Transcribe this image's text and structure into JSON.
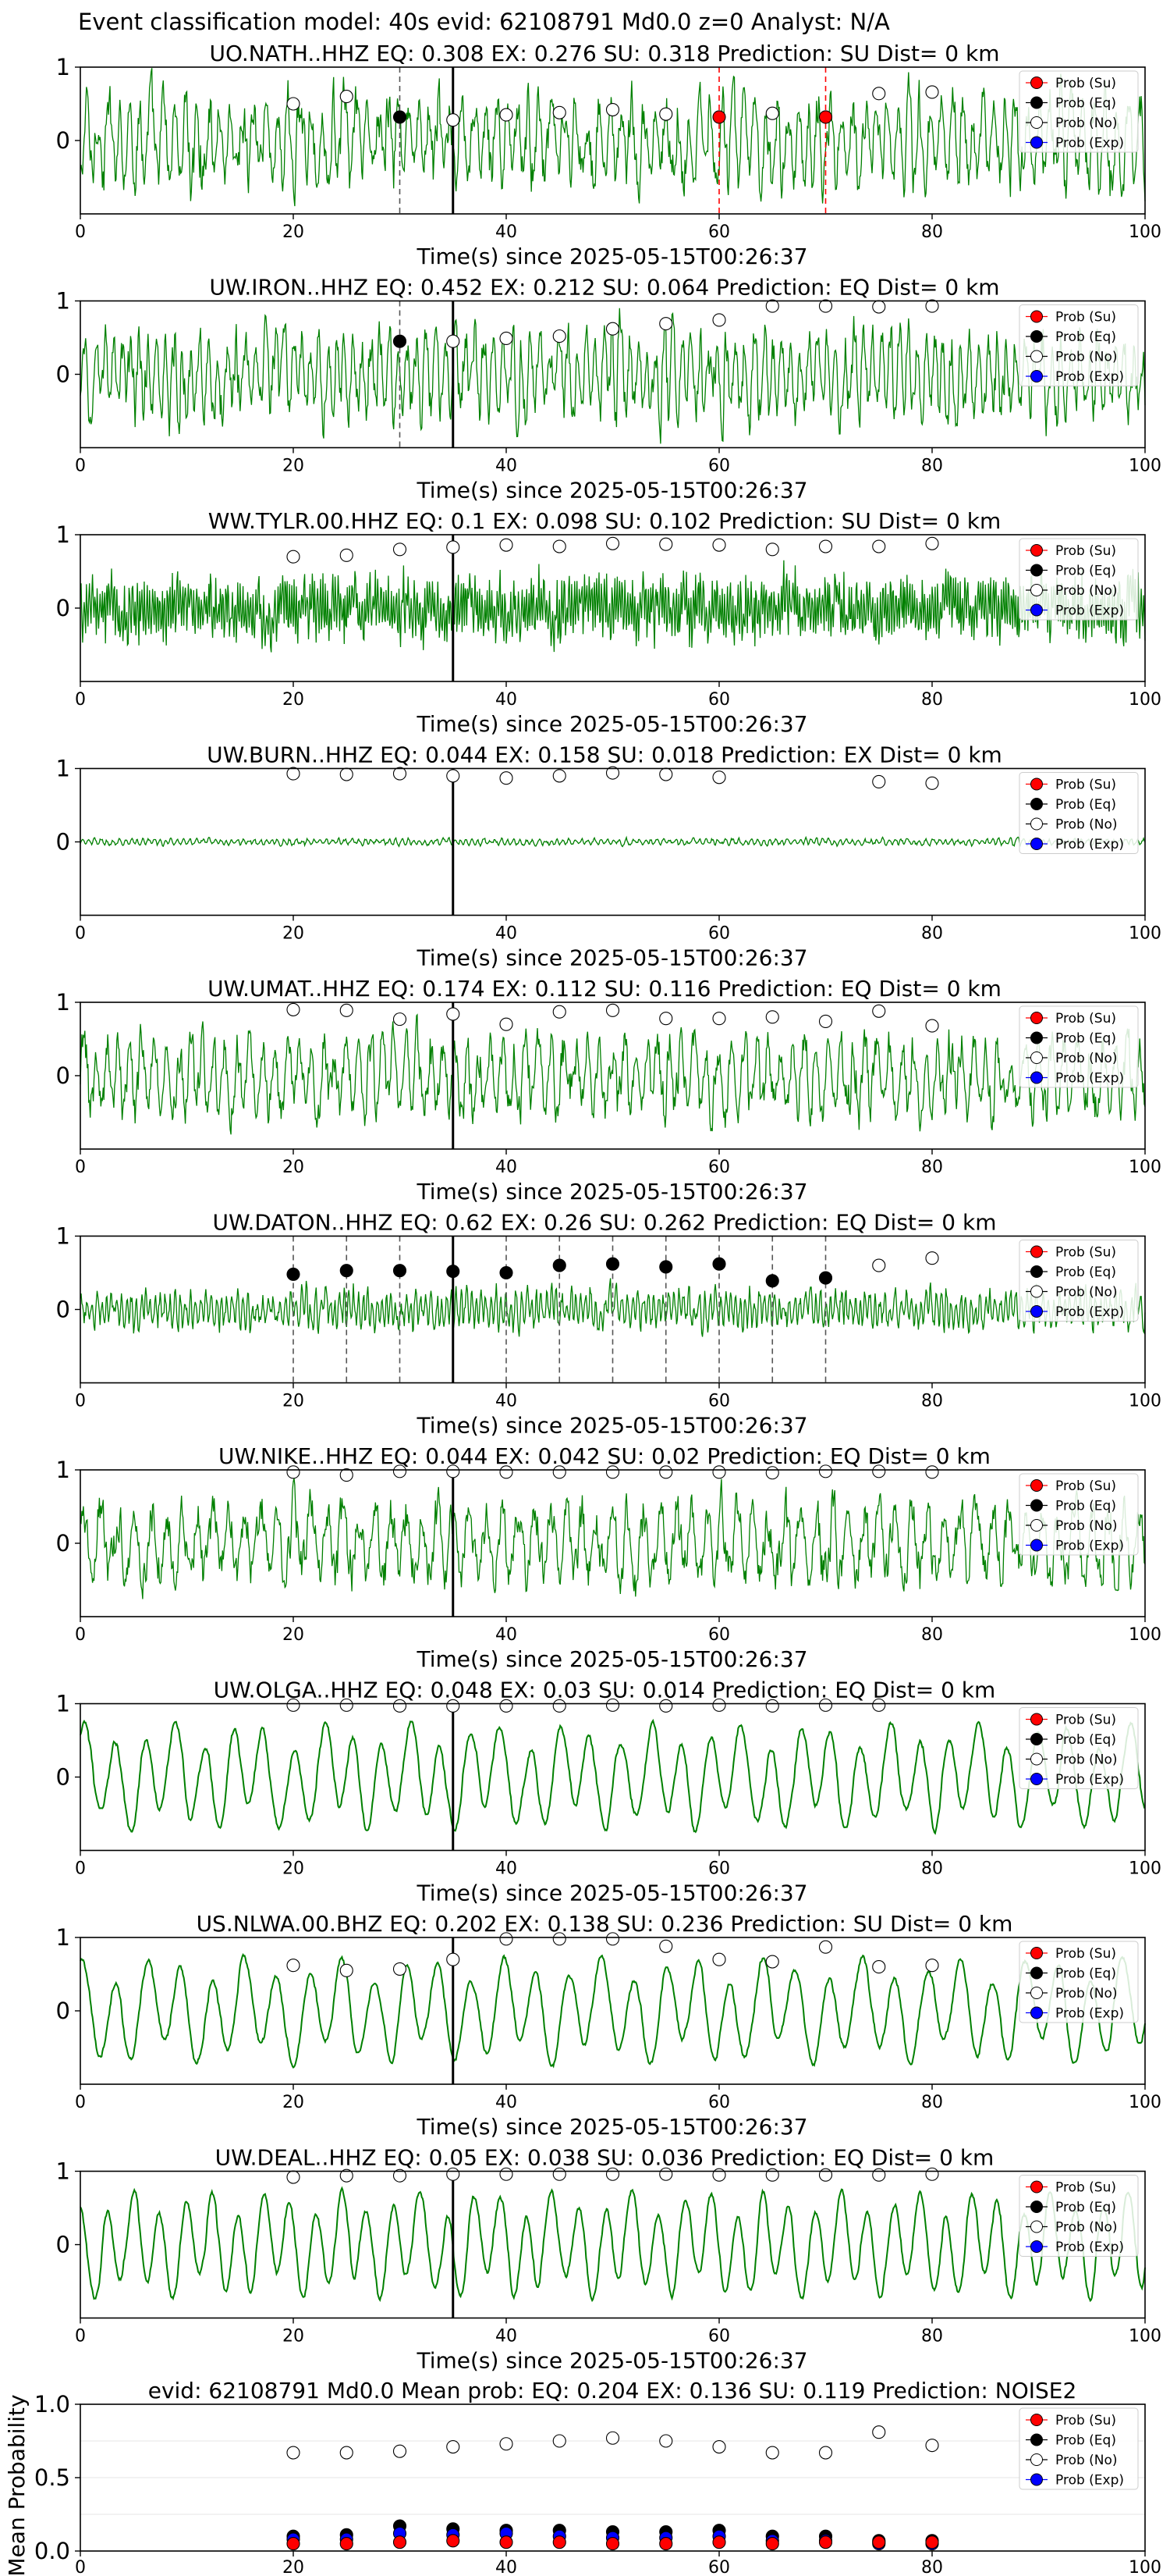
{
  "figure": {
    "title": "Event classification model: 40s evid: 62108791 Md0.0 z=0 Analyst: N/A"
  },
  "legend": {
    "entries": [
      {
        "label": "Prob (Su)",
        "color": "#ff0000",
        "filled": true
      },
      {
        "label": "Prob (Eq)",
        "color": "#000000",
        "filled": true
      },
      {
        "label": "Prob (No)",
        "color": "#ffffff",
        "filled": false
      },
      {
        "label": "Prob (Exp)",
        "color": "#0000ff",
        "filled": true
      }
    ]
  },
  "colors": {
    "trace": "#008000",
    "su": "#ff0000",
    "eq": "#000000",
    "no": "#ffffff",
    "exp": "#0000ff",
    "pick_line": "#000000",
    "eq_window_line": "#555555",
    "su_window_line": "#ff0000"
  },
  "chart_data": [
    {
      "type": "line",
      "station": "UO.NATH..HHZ",
      "title": "UO.NATH..HHZ   EQ: 0.308  EX: 0.276  SU: 0.318   Prediction: SU    Dist= 0 km",
      "xlabel": "Time(s) since 2025-05-15T00:26:37",
      "xlim": [
        0,
        100
      ],
      "ylim": [
        -1,
        1
      ],
      "xticks": [
        "0",
        "20",
        "40",
        "60",
        "80",
        "100"
      ],
      "yticks": [
        "0",
        "1"
      ],
      "pick_time": 35,
      "amplitude": 0.85,
      "period_s": 1.1,
      "grid": false,
      "prob_times": [
        20,
        25,
        30,
        35,
        40,
        45,
        50,
        55,
        60,
        65,
        70,
        75,
        80
      ],
      "predicted_class": [
        "no",
        "no",
        "eq",
        "no",
        "no",
        "no",
        "no",
        "no",
        "su",
        "no",
        "su",
        "no",
        "no"
      ],
      "predicted_prob": [
        0.5,
        0.6,
        0.32,
        0.28,
        0.35,
        0.38,
        0.42,
        0.36,
        0.32,
        0.37,
        0.32,
        0.64,
        0.66
      ]
    },
    {
      "type": "line",
      "station": "UW.IRON..HHZ",
      "title": "UW.IRON..HHZ   EQ: 0.452  EX: 0.212  SU: 0.064   Prediction: EQ    Dist= 0 km",
      "xlabel": "Time(s) since 2025-05-15T00:26:37",
      "xlim": [
        0,
        100
      ],
      "ylim": [
        -1,
        1
      ],
      "xticks": [
        "0",
        "20",
        "40",
        "60",
        "80",
        "100"
      ],
      "yticks": [
        "0",
        "1"
      ],
      "pick_time": 35,
      "amplitude": 0.8,
      "period_s": 0.9,
      "grid": false,
      "prob_times": [
        30,
        35,
        40,
        45,
        50,
        55,
        60,
        65,
        70,
        75,
        80
      ],
      "predicted_class": [
        "eq",
        "no",
        "no",
        "no",
        "no",
        "no",
        "no",
        "no",
        "no",
        "no",
        "no"
      ],
      "predicted_prob": [
        0.45,
        0.45,
        0.49,
        0.52,
        0.62,
        0.69,
        0.74,
        0.93,
        0.93,
        0.92,
        0.93
      ]
    },
    {
      "type": "line",
      "station": "WW.TYLR.00.HHZ",
      "title": "WW.TYLR.00.HHZ   EQ: 0.1  EX: 0.098  SU: 0.102   Prediction: SU    Dist= 0 km",
      "xlabel": "Time(s) since 2025-05-15T00:26:37",
      "xlim": [
        0,
        100
      ],
      "ylim": [
        -1,
        1
      ],
      "xticks": [
        "0",
        "20",
        "40",
        "60",
        "80",
        "100"
      ],
      "yticks": [
        "0",
        "1"
      ],
      "pick_time": 35,
      "amplitude": 0.55,
      "period_s": 0.25,
      "grid": false,
      "prob_times": [
        20,
        25,
        30,
        35,
        40,
        45,
        50,
        55,
        60,
        65,
        70,
        75,
        80
      ],
      "predicted_class": [
        "no",
        "no",
        "no",
        "no",
        "no",
        "no",
        "no",
        "no",
        "no",
        "no",
        "no",
        "no",
        "no"
      ],
      "predicted_prob": [
        0.7,
        0.72,
        0.8,
        0.83,
        0.86,
        0.84,
        0.88,
        0.87,
        0.86,
        0.8,
        0.84,
        0.84,
        0.88
      ]
    },
    {
      "type": "line",
      "station": "UW.BURN..HHZ",
      "title": "UW.BURN..HHZ   EQ: 0.044  EX: 0.158  SU: 0.018   Prediction: EX    Dist= 0 km",
      "xlabel": "Time(s) since 2025-05-15T00:26:37",
      "xlim": [
        0,
        100
      ],
      "ylim": [
        -1,
        1
      ],
      "xticks": [
        "0",
        "20",
        "40",
        "60",
        "80",
        "100"
      ],
      "yticks": [
        "0",
        "1"
      ],
      "pick_time": 35,
      "amplitude": 0.06,
      "period_s": 0.6,
      "grid": false,
      "prob_times": [
        20,
        25,
        30,
        35,
        40,
        45,
        50,
        55,
        60,
        75,
        80
      ],
      "predicted_class": [
        "no",
        "no",
        "no",
        "no",
        "no",
        "no",
        "no",
        "no",
        "no",
        "no",
        "no"
      ],
      "predicted_prob": [
        0.93,
        0.92,
        0.93,
        0.9,
        0.87,
        0.9,
        0.94,
        0.92,
        0.88,
        0.82,
        0.8
      ]
    },
    {
      "type": "line",
      "station": "UW.UMAT..HHZ",
      "title": "UW.UMAT..HHZ   EQ: 0.174  EX: 0.112  SU: 0.116   Prediction: EQ    Dist= 0 km",
      "xlabel": "Time(s) since 2025-05-15T00:26:37",
      "xlim": [
        0,
        100
      ],
      "ylim": [
        -1,
        1
      ],
      "xticks": [
        "0",
        "20",
        "40",
        "60",
        "80",
        "100"
      ],
      "yticks": [
        "0",
        "1"
      ],
      "pick_time": 35,
      "amplitude": 0.75,
      "period_s": 1.2,
      "grid": false,
      "prob_times": [
        20,
        25,
        30,
        35,
        40,
        45,
        50,
        55,
        60,
        65,
        70,
        75,
        80
      ],
      "predicted_class": [
        "no",
        "no",
        "no",
        "no",
        "no",
        "no",
        "no",
        "no",
        "no",
        "no",
        "no",
        "no",
        "no"
      ],
      "predicted_prob": [
        0.9,
        0.89,
        0.77,
        0.84,
        0.7,
        0.87,
        0.89,
        0.78,
        0.78,
        0.8,
        0.74,
        0.88,
        0.68
      ]
    },
    {
      "type": "line",
      "station": "UW.DATON..HHZ",
      "title": "UW.DATON..HHZ   EQ: 0.62  EX: 0.26  SU: 0.262   Prediction: EQ    Dist= 0 km",
      "xlabel": "Time(s) since 2025-05-15T00:26:37",
      "xlim": [
        0,
        100
      ],
      "ylim": [
        -1,
        1
      ],
      "xticks": [
        "0",
        "20",
        "40",
        "60",
        "80",
        "100"
      ],
      "yticks": [
        "0",
        "1"
      ],
      "pick_time": 35,
      "amplitude": 0.35,
      "period_s": 0.5,
      "grid": false,
      "prob_times": [
        20,
        25,
        30,
        35,
        40,
        45,
        50,
        55,
        60,
        65,
        70,
        75,
        80
      ],
      "predicted_class": [
        "eq",
        "eq",
        "eq",
        "eq",
        "eq",
        "eq",
        "eq",
        "eq",
        "eq",
        "eq",
        "eq",
        "no",
        "no"
      ],
      "predicted_prob": [
        0.48,
        0.53,
        0.53,
        0.52,
        0.5,
        0.6,
        0.62,
        0.58,
        0.62,
        0.39,
        0.43,
        0.6,
        0.7
      ]
    },
    {
      "type": "line",
      "station": "UW.NIKE..HHZ",
      "title": "UW.NIKE..HHZ   EQ: 0.044  EX: 0.042  SU: 0.02   Prediction: EQ    Dist= 0 km",
      "xlabel": "Time(s) since 2025-05-15T00:26:37",
      "xlim": [
        0,
        100
      ],
      "ylim": [
        -1,
        1
      ],
      "xticks": [
        "0",
        "20",
        "40",
        "60",
        "80",
        "100"
      ],
      "yticks": [
        "0",
        "1"
      ],
      "pick_time": 35,
      "amplitude": 0.75,
      "period_s": 1.6,
      "grid": false,
      "prob_times": [
        20,
        25,
        30,
        35,
        40,
        45,
        50,
        55,
        60,
        65,
        70,
        75,
        80
      ],
      "predicted_class": [
        "no",
        "no",
        "no",
        "no",
        "no",
        "no",
        "no",
        "no",
        "no",
        "no",
        "no",
        "no",
        "no"
      ],
      "predicted_prob": [
        0.97,
        0.93,
        0.98,
        0.98,
        0.97,
        0.97,
        0.97,
        0.97,
        0.97,
        0.96,
        0.98,
        0.98,
        0.97
      ]
    },
    {
      "type": "line",
      "station": "UW.OLGA..HHZ",
      "title": "UW.OLGA..HHZ   EQ: 0.048  EX: 0.03  SU: 0.014   Prediction: EQ    Dist= 0 km",
      "xlabel": "Time(s) since 2025-05-15T00:26:37",
      "xlim": [
        0,
        100
      ],
      "ylim": [
        -1,
        1
      ],
      "xticks": [
        "0",
        "20",
        "40",
        "60",
        "80",
        "100"
      ],
      "yticks": [
        "0",
        "1"
      ],
      "pick_time": 35,
      "amplitude": 0.75,
      "period_s": 3.0,
      "grid": false,
      "prob_times": [
        20,
        25,
        30,
        35,
        40,
        45,
        50,
        55,
        60,
        65,
        70,
        75
      ],
      "predicted_class": [
        "no",
        "no",
        "no",
        "no",
        "no",
        "no",
        "no",
        "no",
        "no",
        "no",
        "no",
        "no"
      ],
      "predicted_prob": [
        0.98,
        0.98,
        0.97,
        0.97,
        0.97,
        0.97,
        0.98,
        0.97,
        0.98,
        0.97,
        0.98,
        0.98
      ]
    },
    {
      "type": "line",
      "station": "US.NLWA.00.BHZ",
      "title": "US.NLWA.00.BHZ   EQ: 0.202  EX: 0.138  SU: 0.236   Prediction: SU    Dist= 0 km",
      "xlabel": "Time(s) since 2025-05-15T00:26:37",
      "xlim": [
        0,
        100
      ],
      "ylim": [
        -1,
        1
      ],
      "xticks": [
        "0",
        "20",
        "40",
        "60",
        "80",
        "100"
      ],
      "yticks": [
        "0",
        "1"
      ],
      "pick_time": 35,
      "amplitude": 0.75,
      "period_s": 3.2,
      "grid": false,
      "prob_times": [
        20,
        25,
        30,
        35,
        40,
        45,
        50,
        55,
        60,
        65,
        70,
        75,
        80
      ],
      "predicted_class": [
        "no",
        "no",
        "no",
        "no",
        "no",
        "no",
        "no",
        "no",
        "no",
        "no",
        "no",
        "no",
        "no"
      ],
      "predicted_prob": [
        0.62,
        0.55,
        0.57,
        0.7,
        0.98,
        0.98,
        0.98,
        0.88,
        0.7,
        0.67,
        0.87,
        0.6,
        0.62
      ]
    },
    {
      "type": "line",
      "station": "UW.DEAL..HHZ",
      "title": "UW.DEAL..HHZ   EQ: 0.05  EX: 0.038  SU: 0.036   Prediction: EQ    Dist= 0 km",
      "xlabel": "Time(s) since 2025-05-15T00:26:37",
      "xlim": [
        0,
        100
      ],
      "ylim": [
        -1,
        1
      ],
      "xticks": [
        "0",
        "20",
        "40",
        "60",
        "80",
        "100"
      ],
      "yticks": [
        "0",
        "1"
      ],
      "pick_time": 35,
      "amplitude": 0.75,
      "period_s": 2.6,
      "grid": false,
      "prob_times": [
        20,
        25,
        30,
        35,
        40,
        45,
        50,
        55,
        60,
        65,
        70,
        75,
        80
      ],
      "predicted_class": [
        "no",
        "no",
        "no",
        "no",
        "no",
        "no",
        "no",
        "no",
        "no",
        "no",
        "no",
        "no",
        "no"
      ],
      "predicted_prob": [
        0.92,
        0.94,
        0.94,
        0.96,
        0.96,
        0.96,
        0.96,
        0.96,
        0.95,
        0.95,
        0.95,
        0.95,
        0.96
      ]
    },
    {
      "type": "scatter",
      "title": "evid: 62108791   Md0.0   Mean prob:   EQ: 0.204  EX: 0.136  SU: 0.119   Prediction: NOISE2",
      "ylabel": "Mean Probability",
      "xlim": [
        0,
        100
      ],
      "ylim": [
        0,
        1
      ],
      "xticks": [
        "0",
        "20",
        "40",
        "60",
        "80",
        "100"
      ],
      "yticks": [
        "0.0",
        "0.5",
        "1.0"
      ],
      "grid": true,
      "x": [
        20,
        25,
        30,
        35,
        40,
        45,
        50,
        55,
        60,
        65,
        70,
        75,
        80
      ],
      "series": [
        {
          "name": "Prob (No)",
          "key": "no",
          "values": [
            0.67,
            0.67,
            0.68,
            0.71,
            0.73,
            0.75,
            0.77,
            0.75,
            0.71,
            0.67,
            0.67,
            0.81,
            0.72
          ]
        },
        {
          "name": "Prob (Eq)",
          "key": "eq",
          "values": [
            0.1,
            0.11,
            0.17,
            0.15,
            0.14,
            0.14,
            0.13,
            0.13,
            0.14,
            0.1,
            0.1,
            0.07,
            0.07
          ]
        },
        {
          "name": "Prob (Exp)",
          "key": "exp",
          "values": [
            0.08,
            0.08,
            0.12,
            0.11,
            0.12,
            0.1,
            0.09,
            0.09,
            0.1,
            0.07,
            0.07,
            0.05,
            0.05
          ]
        },
        {
          "name": "Prob (Su)",
          "key": "su",
          "values": [
            0.05,
            0.05,
            0.06,
            0.07,
            0.06,
            0.06,
            0.05,
            0.05,
            0.06,
            0.05,
            0.06,
            0.06,
            0.06
          ]
        }
      ]
    }
  ]
}
